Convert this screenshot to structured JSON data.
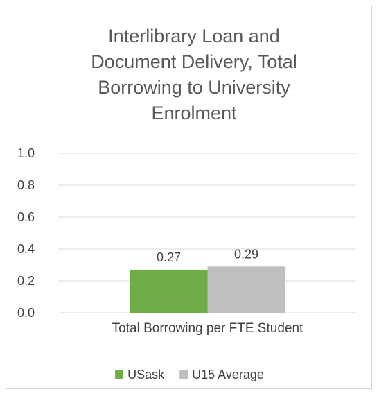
{
  "chart_data": {
    "type": "bar",
    "title_lines": [
      "Interlibrary Loan and",
      "Document Delivery, Total",
      "Borrowing to University",
      "Enrolment"
    ],
    "categories": [
      "Total Borrowing per FTE Student"
    ],
    "series": [
      {
        "name": "USask",
        "values": [
          0.27
        ],
        "color": "#70ad47",
        "label": "0.27"
      },
      {
        "name": "U15 Average",
        "values": [
          0.29
        ],
        "color": "#bfbfbf",
        "label": "0.29"
      }
    ],
    "ylim": [
      0,
      1.0
    ],
    "yticks": [
      "0.0",
      "0.2",
      "0.4",
      "0.6",
      "0.8",
      "1.0"
    ],
    "grid": true,
    "legend_position": "bottom"
  }
}
